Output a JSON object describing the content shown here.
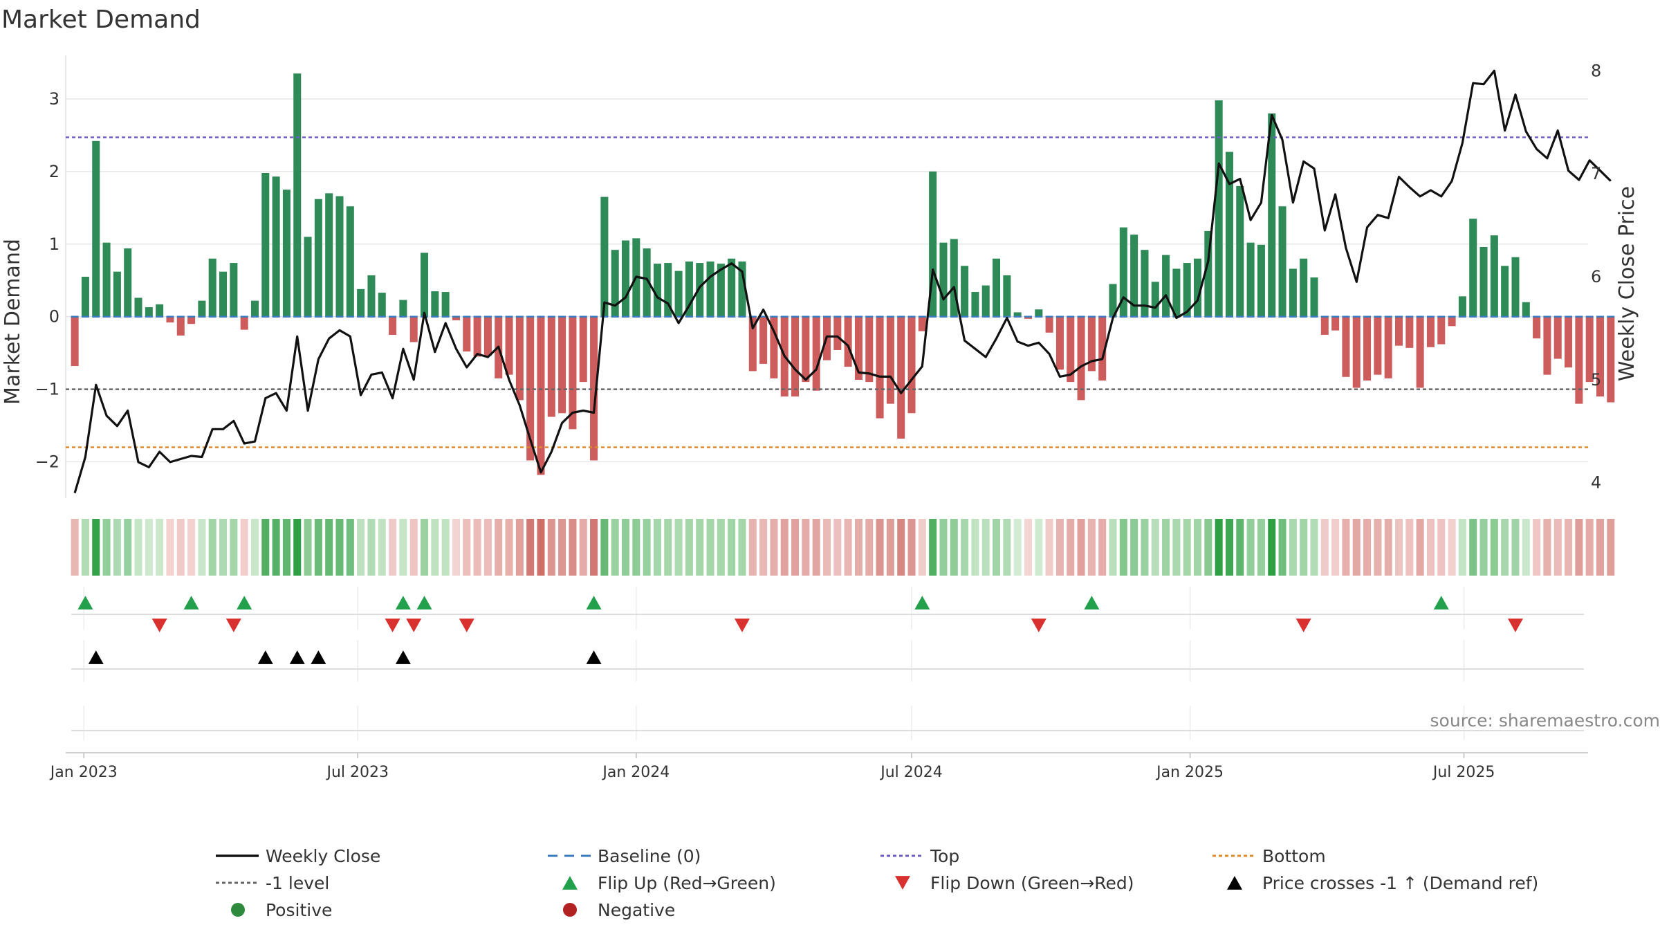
{
  "chart_data": {
    "type": "bar",
    "title": "Market Demand",
    "ylabel": "Market Demand",
    "y2label": "Weekly Close Price",
    "ylim": [
      -2.5,
      3.6
    ],
    "y2lim": [
      3.85,
      8.15
    ],
    "yticks": [
      -2,
      -1,
      0,
      1,
      2,
      3
    ],
    "y2ticks": [
      4,
      5,
      6,
      7,
      8
    ],
    "x_start": "2022-12-26",
    "x_step_days": 7,
    "x_range": [
      "2022-12-20",
      "2025-09-21"
    ],
    "xticks": [
      {
        "date": "2023-01-01",
        "label": "Jan 2023"
      },
      {
        "date": "2023-07-01",
        "label": "Jul 2023"
      },
      {
        "date": "2024-01-01",
        "label": "Jan 2024"
      },
      {
        "date": "2024-07-01",
        "label": "Jul 2024"
      },
      {
        "date": "2025-01-01",
        "label": "Jan 2025"
      },
      {
        "date": "2025-07-01",
        "label": "Jul 2025"
      }
    ],
    "demand": [
      -0.68,
      0.55,
      2.42,
      1.02,
      0.62,
      0.94,
      0.26,
      0.13,
      0.17,
      -0.08,
      -0.26,
      -0.1,
      0.22,
      0.8,
      0.62,
      0.74,
      -0.18,
      0.22,
      1.98,
      1.93,
      1.75,
      3.35,
      1.1,
      1.62,
      1.7,
      1.66,
      1.52,
      0.38,
      0.57,
      0.33,
      -0.25,
      0.23,
      -0.35,
      0.88,
      0.35,
      0.34,
      -0.05,
      -0.48,
      -0.55,
      -0.54,
      -0.85,
      -0.8,
      -1.15,
      -1.98,
      -2.18,
      -1.38,
      -1.33,
      -1.55,
      -0.9,
      -1.98,
      1.65,
      0.92,
      1.05,
      1.08,
      0.94,
      0.73,
      0.74,
      0.63,
      0.76,
      0.74,
      0.76,
      0.73,
      0.8,
      0.76,
      -0.75,
      -0.65,
      -0.85,
      -1.1,
      -1.1,
      -0.9,
      -1.02,
      -0.6,
      -0.46,
      -0.69,
      -0.87,
      -0.9,
      -1.4,
      -1.2,
      -1.68,
      -1.33,
      -0.2,
      2.0,
      1.02,
      1.07,
      0.7,
      0.34,
      0.43,
      0.8,
      0.57,
      0.06,
      -0.03,
      0.1,
      -0.22,
      -0.73,
      -0.9,
      -1.15,
      -0.75,
      -0.88,
      0.45,
      1.23,
      1.13,
      0.92,
      0.48,
      0.85,
      0.66,
      0.74,
      0.8,
      1.18,
      2.98,
      2.27,
      1.8,
      1.02,
      0.99,
      2.8,
      1.52,
      0.66,
      0.8,
      0.54,
      -0.25,
      -0.19,
      -0.83,
      -0.98,
      -0.88,
      -0.8,
      -0.85,
      -0.4,
      -0.43,
      -0.98,
      -0.42,
      -0.38,
      -0.13,
      0.28,
      1.35,
      0.96,
      1.12,
      0.7,
      0.82,
      0.2,
      -0.3,
      -0.8,
      -0.58,
      -0.7,
      -1.2,
      -0.9,
      -1.1,
      -1.18
    ],
    "price": [
      3.9,
      4.25,
      4.95,
      4.65,
      4.55,
      4.7,
      4.2,
      4.15,
      4.3,
      4.2,
      4.23,
      4.26,
      4.25,
      4.52,
      4.52,
      4.6,
      4.38,
      4.4,
      4.82,
      4.87,
      4.7,
      5.42,
      4.7,
      5.2,
      5.4,
      5.48,
      5.42,
      4.85,
      5.05,
      5.07,
      4.82,
      5.3,
      5.0,
      5.65,
      5.27,
      5.55,
      5.3,
      5.12,
      5.25,
      5.22,
      5.32,
      5.0,
      4.75,
      4.42,
      4.1,
      4.3,
      4.58,
      4.68,
      4.7,
      4.68,
      5.75,
      5.72,
      5.8,
      6.0,
      5.98,
      5.8,
      5.74,
      5.55,
      5.72,
      5.9,
      6.0,
      6.07,
      6.13,
      6.05,
      5.5,
      5.68,
      5.47,
      5.23,
      5.1,
      5.0,
      5.1,
      5.42,
      5.42,
      5.33,
      5.07,
      5.06,
      5.03,
      5.03,
      4.87,
      5.0,
      5.13,
      6.07,
      5.78,
      5.9,
      5.38,
      5.3,
      5.22,
      5.4,
      5.6,
      5.37,
      5.33,
      5.36,
      5.25,
      5.03,
      5.05,
      5.13,
      5.18,
      5.2,
      5.6,
      5.8,
      5.72,
      5.72,
      5.7,
      5.82,
      5.6,
      5.66,
      5.77,
      6.15,
      7.1,
      6.9,
      6.95,
      6.55,
      6.72,
      7.57,
      7.33,
      6.72,
      7.12,
      7.05,
      6.45,
      6.8,
      6.28,
      5.95,
      6.48,
      6.6,
      6.57,
      6.97,
      6.87,
      6.78,
      6.84,
      6.78,
      6.93,
      7.3,
      7.88,
      7.87,
      8.0,
      7.42,
      7.77,
      7.41,
      7.24,
      7.15,
      7.42,
      7.03,
      6.94,
      7.13,
      7.03,
      6.93
    ],
    "top_level": 2.47,
    "bottom_level": -1.8,
    "minus1_level": -1.0,
    "baseline": 0,
    "flip_up_idx": [
      1,
      11,
      16,
      31,
      33,
      49,
      80,
      96,
      129
    ],
    "flip_down_idx": [
      8,
      15,
      30,
      32,
      37,
      63,
      91,
      116,
      136
    ],
    "price_cross_idx": [
      2,
      18,
      21,
      23,
      31,
      49
    ],
    "legend": [
      {
        "label": "Weekly Close",
        "kind": "line",
        "color": "#111111"
      },
      {
        "label": "Baseline (0)",
        "kind": "dash",
        "color": "#3b7bbf"
      },
      {
        "label": "Top",
        "kind": "dot",
        "color": "#6b5fc7"
      },
      {
        "label": "Bottom",
        "kind": "dot",
        "color": "#e08a2a"
      },
      {
        "label": "-1 level",
        "kind": "dot",
        "color": "#666666"
      },
      {
        "label": "Flip Up (Red→Green)",
        "kind": "tri-up",
        "color": "#22a04b"
      },
      {
        "label": "Flip Down (Green→Red)",
        "kind": "tri-down",
        "color": "#d8312f"
      },
      {
        "label": "Price crosses -1 ↑ (Demand ref)",
        "kind": "tri-up",
        "color": "#000000"
      },
      {
        "label": "Positive",
        "kind": "circle",
        "color": "#2e8b3e"
      },
      {
        "label": "Negative",
        "kind": "circle",
        "color": "#b22222"
      }
    ],
    "source": "source: sharemaestro.com"
  },
  "colors": {
    "positive_bar": "#2e8b57",
    "negative_bar": "#cd5c5c",
    "price_line": "#111111",
    "top_line": "#6b5fc7",
    "bottom_line": "#e08a2a",
    "minus1_line": "#666666",
    "baseline": "#3b7bbf",
    "grid": "#e6e6e6"
  }
}
